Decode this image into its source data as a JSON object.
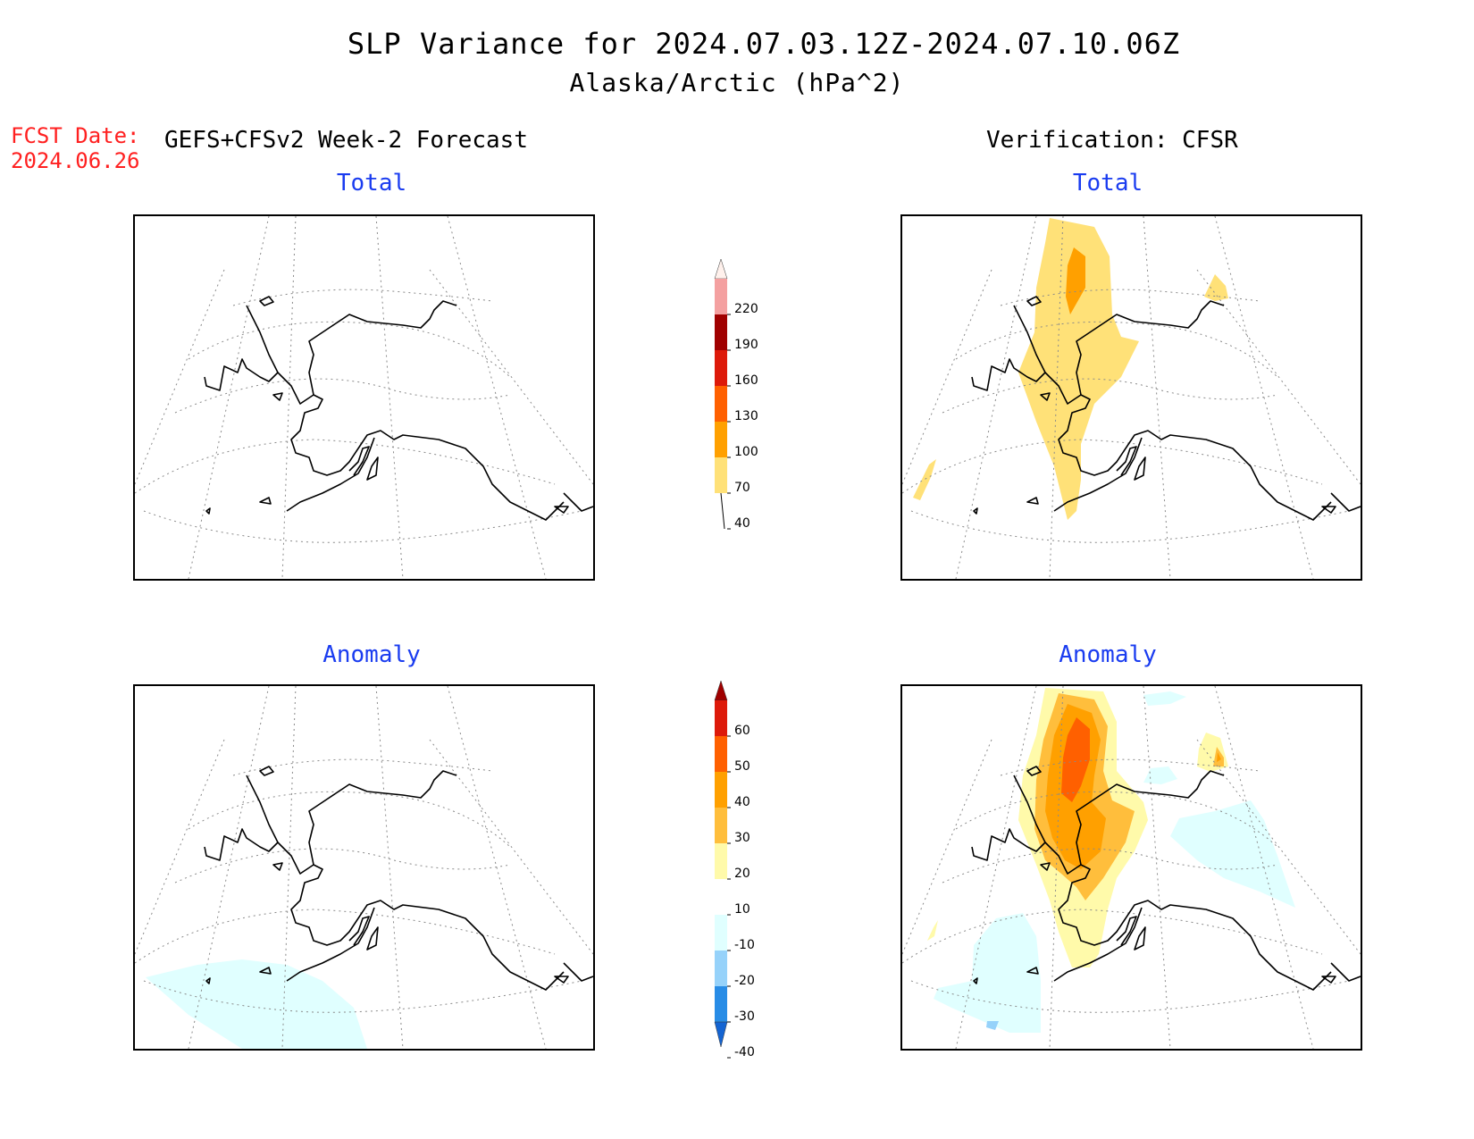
{
  "header": {
    "title": "SLP Variance for 2024.07.03.12Z-2024.07.10.06Z",
    "subtitle": "Alaska/Arctic (hPa^2)",
    "fcst_label": "FCST Date:",
    "fcst_date": "2024.06.26",
    "left_heading": "GEFS+CFSv2 Week-2 Forecast",
    "right_heading": "Verification: CFSR"
  },
  "panels": {
    "forecast_total_title": "Total",
    "verification_total_title": "Total",
    "forecast_anomaly_title": "Anomaly",
    "verification_anomaly_title": "Anomaly"
  },
  "colorbars": {
    "total": {
      "labels": [
        "220",
        "190",
        "160",
        "130",
        "100",
        "70",
        "40"
      ],
      "colors": [
        "#fff1ec",
        "#f4a0a0",
        "#a00000",
        "#dd1a0a",
        "#ff6000",
        "#ffa000",
        "#ffe178"
      ]
    },
    "anomaly": {
      "labels": [
        "60",
        "50",
        "40",
        "30",
        "20",
        "10",
        "-10",
        "-20",
        "-30",
        "-40"
      ],
      "colors": [
        "#a00000",
        "#dd1a0a",
        "#ff6000",
        "#ffa000",
        "#ffbe3c",
        "#fffaaa",
        "#ffffff",
        "#e0ffff",
        "#96d2fa",
        "#288ce6",
        "#1464d2"
      ]
    }
  }
}
